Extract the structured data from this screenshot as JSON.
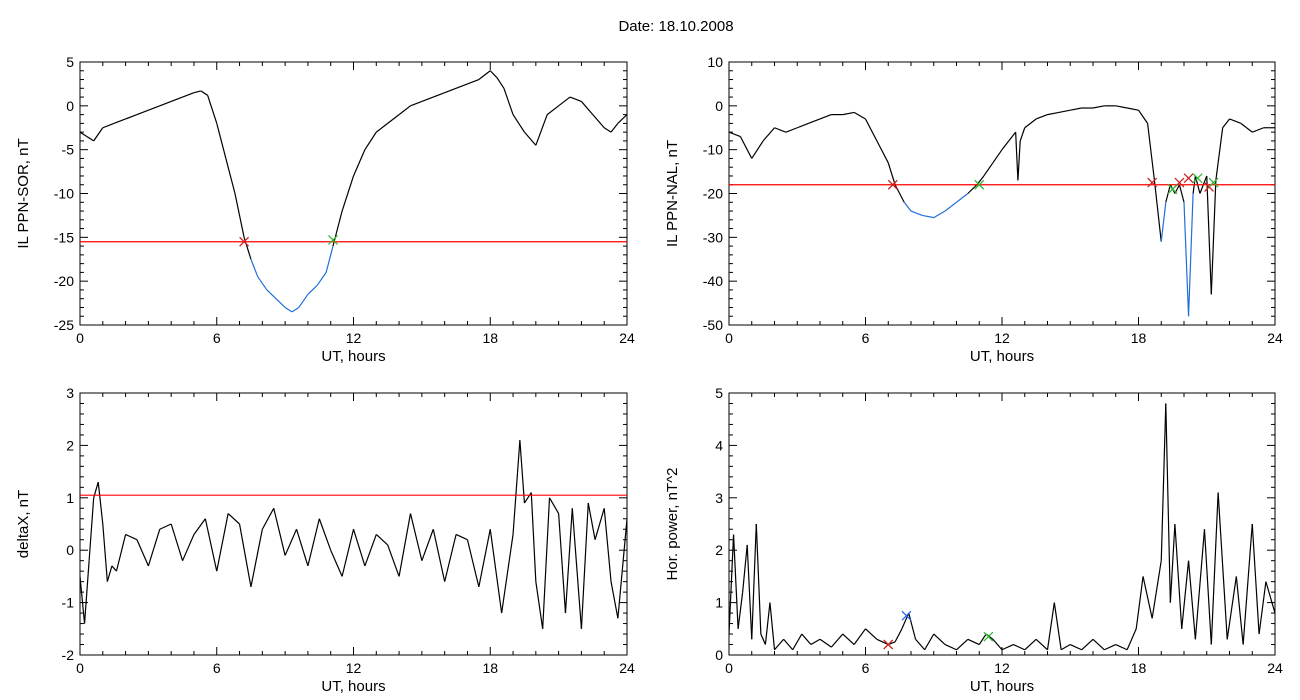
{
  "figure_title": "Date:  18.10.2008",
  "colors": {
    "trace": "#000000",
    "threshold": "#ff0000",
    "below": "#1f6fd6",
    "cross_down": "#cc2222",
    "cross_up": "#33bb33",
    "max_marker": "#2266ee"
  },
  "chart_data": [
    {
      "id": "ppn-sor",
      "type": "line",
      "title": "",
      "xlabel": "UT, hours",
      "ylabel": "IL PPN-SOR, nT",
      "xlim": [
        0,
        24
      ],
      "ylim": [
        -25,
        5
      ],
      "xticks": [
        "0",
        "6",
        "12",
        "18",
        "24"
      ],
      "yticks": [
        "5",
        "0",
        "-5",
        "-10",
        "-15",
        "-20",
        "-25"
      ],
      "threshold": -15.5,
      "series": [
        {
          "x": [
            0,
            0.3,
            0.6,
            1,
            1.5,
            2,
            2.5,
            3,
            3.5,
            4,
            4.5,
            5,
            5.3,
            5.6,
            6,
            6.4,
            6.8,
            7.2,
            7.5,
            7.8,
            8.2,
            8.6,
            9,
            9.3,
            9.6,
            10,
            10.4,
            10.8,
            11.1,
            11.5,
            12,
            12.5,
            13,
            13.5,
            14,
            14.5,
            15,
            15.5,
            16,
            16.5,
            17,
            17.5,
            18,
            18.3,
            18.6,
            19,
            19.5,
            20,
            20.5,
            21,
            21.5,
            22,
            22.5,
            23,
            23.3,
            23.6,
            24
          ],
          "y": [
            -3,
            -3.5,
            -4,
            -2.5,
            -2,
            -1.5,
            -1,
            -0.5,
            0,
            0.5,
            1,
            1.5,
            1.7,
            1.2,
            -2,
            -6,
            -10,
            -15,
            -17.5,
            -19.5,
            -21,
            -22,
            -23,
            -23.5,
            -23,
            -21.5,
            -20.5,
            -19,
            -16,
            -12,
            -8,
            -5,
            -3,
            -2,
            -1,
            0,
            0.5,
            1,
            1.5,
            2,
            2.5,
            3,
            4,
            3.2,
            2,
            -1,
            -3,
            -4.5,
            -1,
            0,
            1,
            0.5,
            -1,
            -2.5,
            -3,
            -2,
            -1
          ]
        }
      ],
      "crossings_down": [
        {
          "x": 7.2,
          "y": -15.5
        }
      ],
      "crossings_up": [
        {
          "x": 11.1,
          "y": -15.3
        }
      ],
      "max_markers": []
    },
    {
      "id": "ppn-nal",
      "type": "line",
      "title": "",
      "xlabel": "UT, hours",
      "ylabel": "IL PPN-NAL, nT",
      "xlim": [
        0,
        24
      ],
      "ylim": [
        -50,
        10
      ],
      "xticks": [
        "0",
        "6",
        "12",
        "18",
        "24"
      ],
      "yticks": [
        "10",
        "0",
        "-10",
        "-20",
        "-30",
        "-40",
        "-50"
      ],
      "threshold": -18,
      "series": [
        {
          "x": [
            0,
            0.5,
            1,
            1.5,
            2,
            2.5,
            3,
            3.5,
            4,
            4.5,
            5,
            5.5,
            6,
            6.5,
            7,
            7.3,
            7.7,
            8,
            8.5,
            9,
            9.5,
            10,
            10.5,
            10.9,
            11.2,
            11.6,
            12,
            12.3,
            12.6,
            12.7,
            12.8,
            13,
            13.5,
            14,
            14.5,
            15,
            15.5,
            16,
            16.5,
            17,
            17.5,
            18,
            18.4,
            18.7,
            19,
            19.2,
            19.4,
            19.6,
            19.8,
            20,
            20.2,
            20.4,
            20.5,
            20.7,
            21,
            21.2,
            21.4,
            21.7,
            22,
            22.5,
            23,
            23.5,
            24
          ],
          "y": [
            -6,
            -7,
            -12,
            -8,
            -5,
            -6,
            -5,
            -4,
            -3,
            -2,
            -2,
            -1.5,
            -3,
            -8,
            -13,
            -18,
            -22,
            -24,
            -25,
            -25.5,
            -24,
            -22,
            -20,
            -18,
            -16,
            -13,
            -10,
            -8,
            -6,
            -17,
            -8,
            -5,
            -3,
            -2,
            -1.5,
            -1,
            -0.5,
            -0.5,
            0,
            0,
            -0.5,
            -1,
            -4,
            -17,
            -31,
            -22,
            -18,
            -20,
            -18,
            -22,
            -48,
            -20,
            -16,
            -20,
            -16,
            -43,
            -17,
            -5,
            -3,
            -4,
            -6,
            -5,
            -5
          ]
        }
      ],
      "crossings_down": [
        {
          "x": 7.2,
          "y": -18
        },
        {
          "x": 18.6,
          "y": -17.5
        },
        {
          "x": 19.8,
          "y": -17.5
        },
        {
          "x": 20.2,
          "y": -16.5
        },
        {
          "x": 21.1,
          "y": -18.5
        }
      ],
      "crossings_up": [
        {
          "x": 11.0,
          "y": -18
        },
        {
          "x": 19.5,
          "y": -19
        },
        {
          "x": 20.6,
          "y": -16.5
        },
        {
          "x": 21.3,
          "y": -17.5
        }
      ],
      "max_markers": []
    },
    {
      "id": "deltax",
      "type": "line",
      "title": "",
      "xlabel": "UT, hours",
      "ylabel": "deltaX, nT",
      "xlim": [
        0,
        24
      ],
      "ylim": [
        -2,
        3
      ],
      "xticks": [
        "0",
        "6",
        "12",
        "18",
        "24"
      ],
      "yticks": [
        "3",
        "2",
        "1",
        "0",
        "-1",
        "-2"
      ],
      "threshold": 1.05,
      "series": [
        {
          "x": [
            0,
            0.2,
            0.4,
            0.6,
            0.8,
            1,
            1.2,
            1.4,
            1.6,
            2,
            2.5,
            3,
            3.5,
            4,
            4.5,
            5,
            5.5,
            6,
            6.5,
            7,
            7.5,
            8,
            8.5,
            9,
            9.5,
            10,
            10.5,
            11,
            11.5,
            12,
            12.5,
            13,
            13.5,
            14,
            14.5,
            15,
            15.5,
            16,
            16.5,
            17,
            17.5,
            18,
            18.5,
            19,
            19.3,
            19.5,
            19.8,
            20,
            20.3,
            20.6,
            21,
            21.3,
            21.6,
            22,
            22.3,
            22.6,
            23,
            23.3,
            23.6,
            24
          ],
          "y": [
            -0.5,
            -1.4,
            -0.2,
            1.0,
            1.3,
            0.5,
            -0.6,
            -0.3,
            -0.4,
            0.3,
            0.2,
            -0.3,
            0.4,
            0.5,
            -0.2,
            0.3,
            0.6,
            -0.4,
            0.7,
            0.5,
            -0.7,
            0.4,
            0.8,
            -0.1,
            0.4,
            -0.3,
            0.6,
            0,
            -0.5,
            0.4,
            -0.3,
            0.3,
            0.1,
            -0.5,
            0.7,
            -0.2,
            0.4,
            -0.6,
            0.3,
            0.2,
            -0.7,
            0.4,
            -1.2,
            0.3,
            2.1,
            0.9,
            1.1,
            -0.6,
            -1.5,
            1.0,
            0.7,
            -1.2,
            0.8,
            -1.5,
            0.9,
            0.2,
            0.8,
            -0.6,
            -1.3,
            0.6
          ]
        }
      ],
      "crossings_down": [],
      "crossings_up": [],
      "max_markers": []
    },
    {
      "id": "hor-power",
      "type": "line",
      "title": "",
      "xlabel": "UT, hours",
      "ylabel": "Hor. power, nT^2",
      "xlim": [
        0,
        24
      ],
      "ylim": [
        0,
        5
      ],
      "xticks": [
        "0",
        "6",
        "12",
        "18",
        "24"
      ],
      "yticks": [
        "5",
        "4",
        "3",
        "2",
        "1",
        "0"
      ],
      "threshold": null,
      "series": [
        {
          "x": [
            0,
            0.2,
            0.4,
            0.6,
            0.8,
            1,
            1.2,
            1.4,
            1.6,
            1.8,
            2,
            2.4,
            2.8,
            3.2,
            3.6,
            4,
            4.5,
            5,
            5.5,
            6,
            6.5,
            7,
            7.3,
            7.6,
            7.9,
            8.2,
            8.6,
            9,
            9.5,
            10,
            10.5,
            11,
            11.3,
            11.6,
            12,
            12.5,
            13,
            13.5,
            14,
            14.3,
            14.6,
            15,
            15.5,
            16,
            16.5,
            17,
            17.5,
            17.9,
            18.2,
            18.6,
            19,
            19.2,
            19.4,
            19.6,
            19.9,
            20.2,
            20.5,
            20.9,
            21.2,
            21.5,
            21.9,
            22.3,
            22.6,
            23,
            23.3,
            23.6,
            24
          ],
          "y": [
            0.4,
            2.3,
            0.5,
            1.2,
            2.1,
            0.3,
            2.5,
            0.4,
            0.2,
            1.0,
            0.1,
            0.3,
            0.1,
            0.4,
            0.2,
            0.3,
            0.15,
            0.4,
            0.2,
            0.5,
            0.3,
            0.2,
            0.25,
            0.5,
            0.8,
            0.3,
            0.1,
            0.4,
            0.2,
            0.1,
            0.3,
            0.2,
            0.4,
            0.3,
            0.1,
            0.2,
            0.1,
            0.3,
            0.1,
            1.0,
            0.1,
            0.2,
            0.1,
            0.3,
            0.1,
            0.2,
            0.1,
            0.5,
            1.5,
            0.7,
            1.8,
            4.8,
            1.0,
            2.5,
            0.5,
            1.8,
            0.3,
            2.4,
            0.2,
            3.1,
            0.3,
            1.5,
            0.2,
            2.5,
            0.4,
            1.4,
            0.8
          ]
        }
      ],
      "crossings_down": [
        {
          "x": 7.0,
          "y": 0.2
        }
      ],
      "crossings_up": [
        {
          "x": 11.4,
          "y": 0.35
        }
      ],
      "max_markers": [
        {
          "x": 7.8,
          "y": 0.75
        }
      ]
    }
  ]
}
